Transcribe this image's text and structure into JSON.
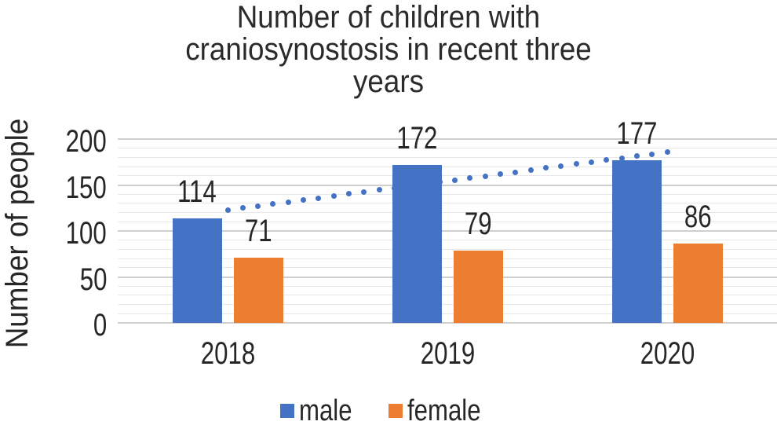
{
  "chart_data": {
    "type": "bar",
    "title": "Number of children with craniosynostosis in recent three years",
    "title_lines": [
      "Number of children with",
      "craniosynostosis in recent three",
      "years"
    ],
    "ylabel": "Number of people",
    "xlabel": "",
    "categories": [
      "2018",
      "2019",
      "2020"
    ],
    "series": [
      {
        "name": "male",
        "color": "#4472C4",
        "values": [
          114,
          172,
          177
        ]
      },
      {
        "name": "female",
        "color": "#ED7D31",
        "values": [
          71,
          79,
          86
        ]
      }
    ],
    "data_labels": true,
    "ylim": [
      0,
      200
    ],
    "yticks": [
      0,
      50,
      100,
      150,
      200
    ],
    "minor_gridline_step": 10,
    "major_gridline_step": 50,
    "grid": true,
    "legend_position": "bottom",
    "trendline": {
      "series": "male",
      "type": "linear",
      "style": "dotted",
      "color": "#4472C4",
      "end_values": [
        122.8,
        185.8
      ]
    }
  },
  "colors": {
    "text": "#262626",
    "grid_minor": "#e8e8e8",
    "grid_major": "#cfcfcf",
    "background": "#ffffff"
  }
}
